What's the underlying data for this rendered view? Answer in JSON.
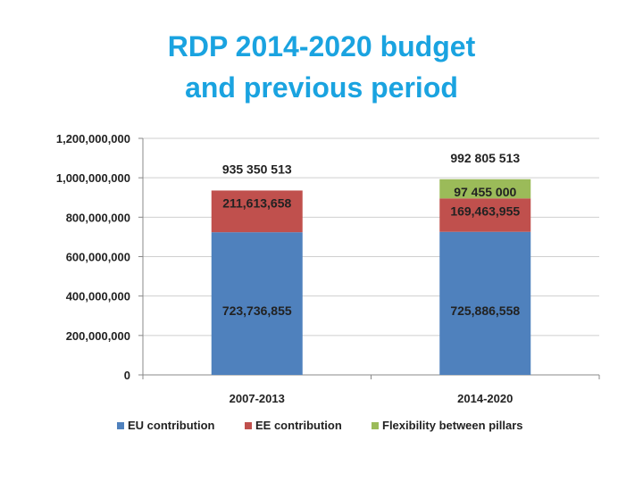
{
  "title_lines": [
    "RDP 2014-2020 budget",
    "and previous period"
  ],
  "chart_data": {
    "type": "bar",
    "stacked": true,
    "title": "RDP 2014-2020 budget and previous period",
    "categories": [
      "2007-2013",
      "2014-2020"
    ],
    "ylim": [
      0,
      1200000000
    ],
    "y_ticks": [
      0,
      200000000,
      400000000,
      600000000,
      800000000,
      1000000000,
      1200000000
    ],
    "y_tick_labels": [
      "0",
      "200,000,000",
      "400,000,000",
      "600,000,000",
      "800,000,000",
      "1,000,000,000",
      "1,200,000,000"
    ],
    "grid": true,
    "legend_position": "bottom",
    "series": [
      {
        "name": "EU contribution",
        "color": "#4f81bd",
        "values": [
          723736855,
          725886558
        ],
        "labels": [
          "723,736,855",
          "725,886,558"
        ]
      },
      {
        "name": "EE contribution",
        "color": "#c0504d",
        "values": [
          211613658,
          169463955
        ],
        "labels": [
          "211,613,658",
          "169,463,955"
        ]
      },
      {
        "name": "Flexibility between pillars",
        "color": "#9bbb59",
        "values": [
          0,
          97455000
        ],
        "labels": [
          "",
          "97 455 000"
        ]
      }
    ],
    "totals": [
      935350513,
      992805513
    ],
    "total_labels": [
      "935 350 513",
      "992 805 513"
    ]
  }
}
